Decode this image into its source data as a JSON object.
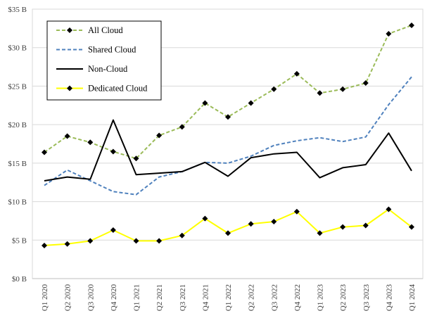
{
  "chart_data": {
    "type": "line",
    "categories": [
      "Q1 2020",
      "Q2 2020",
      "Q3 2020",
      "Q4 2020",
      "Q1 2021",
      "Q2 2021",
      "Q3 2021",
      "Q4 2021",
      "Q1 2022",
      "Q2 2022",
      "Q3 2022",
      "Q4 2022",
      "Q1 2023",
      "Q2 2023",
      "Q3 2023",
      "Q4 2023",
      "Q1 2024"
    ],
    "ylim": [
      0,
      35
    ],
    "yticks": [
      0,
      5,
      10,
      15,
      20,
      25,
      30,
      35
    ],
    "ytick_labels": [
      "$0 B",
      "$5 B",
      "$10 B",
      "$15 B",
      "$20 B",
      "$25 B",
      "$30 B",
      "$35 B"
    ],
    "grid": "horizontal",
    "legend_position": "top-left",
    "series": [
      {
        "name": "All Cloud",
        "color": "#9BBB59",
        "dash": "dashed",
        "markers": true,
        "values": [
          16.4,
          18.5,
          17.7,
          16.5,
          15.6,
          18.6,
          19.7,
          22.8,
          21.0,
          22.8,
          24.6,
          26.6,
          24.1,
          24.6,
          25.4,
          31.8,
          32.9
        ]
      },
      {
        "name": "Shared Cloud",
        "color": "#4F81BD",
        "dash": "dashed",
        "markers": false,
        "values": [
          12.1,
          14.1,
          12.7,
          11.3,
          10.9,
          13.2,
          13.9,
          15.1,
          15.0,
          15.9,
          17.3,
          17.9,
          18.3,
          17.8,
          18.4,
          22.6,
          26.2
        ]
      },
      {
        "name": "Non-Cloud",
        "color": "#000000",
        "dash": "solid",
        "markers": false,
        "values": [
          12.7,
          13.2,
          12.9,
          20.6,
          13.5,
          13.7,
          13.9,
          15.1,
          13.3,
          15.7,
          16.2,
          16.4,
          13.1,
          14.4,
          14.8,
          18.9,
          14.0
        ]
      },
      {
        "name": "Dedicated Cloud",
        "color": "#FFFF00",
        "dash": "solid",
        "markers": true,
        "values": [
          4.3,
          4.5,
          4.9,
          6.3,
          4.9,
          4.9,
          5.6,
          7.8,
          5.9,
          7.1,
          7.4,
          8.7,
          5.9,
          6.7,
          6.9,
          9.0,
          6.7
        ]
      }
    ]
  }
}
